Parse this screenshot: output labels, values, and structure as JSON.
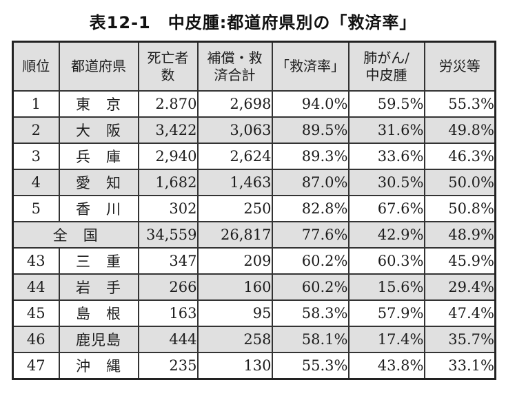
{
  "title": "表12-1　中皮腫:都道府県別の「救済率」",
  "colors": {
    "stripe_bg": "#e0e0e0",
    "border_inner": "#333333",
    "border_outer": "#222222",
    "text": "#1c1c1c",
    "page_bg": "#ffffff"
  },
  "chart_data": {
    "type": "table",
    "title": "表12-1　中皮腫:都道府県別の「救済率」",
    "columns": [
      "順位",
      "都道府県",
      "死亡者数",
      "補償・救済合計",
      "「救済率」",
      "肺がん/中皮腫",
      "労災等"
    ],
    "rows": [
      [
        "1",
        "東京",
        "2.870",
        "2,698",
        "94.0%",
        "59.5%",
        "55.3%"
      ],
      [
        "2",
        "大阪",
        "3,422",
        "3,063",
        "89.5%",
        "31.6%",
        "49.8%"
      ],
      [
        "3",
        "兵庫",
        "2,940",
        "2,624",
        "89.3%",
        "33.6%",
        "46.3%"
      ],
      [
        "4",
        "愛知",
        "1,682",
        "1,463",
        "87.0%",
        "30.5%",
        "50.0%"
      ],
      [
        "5",
        "香川",
        "302",
        "250",
        "82.8%",
        "67.6%",
        "50.8%"
      ],
      [
        "",
        "全国",
        "34,559",
        "26,817",
        "77.6%",
        "42.9%",
        "48.9%"
      ],
      [
        "43",
        "三重",
        "347",
        "209",
        "60.2%",
        "60.3%",
        "45.9%"
      ],
      [
        "44",
        "岩手",
        "266",
        "160",
        "60.2%",
        "15.6%",
        "29.4%"
      ],
      [
        "45",
        "島根",
        "163",
        "95",
        "58.3%",
        "57.9%",
        "47.4%"
      ],
      [
        "46",
        "鹿児島",
        "444",
        "258",
        "58.1%",
        "17.4%",
        "35.7%"
      ],
      [
        "47",
        "沖縄",
        "235",
        "130",
        "55.3%",
        "43.8%",
        "33.1%"
      ]
    ]
  },
  "table": {
    "columns": [
      {
        "label": "順位"
      },
      {
        "label": "都道府県"
      },
      {
        "label": "死亡者\n数"
      },
      {
        "label": "補償・救\n済合計"
      },
      {
        "label": "「救済率」"
      },
      {
        "label": "肺がん/\n中皮腫"
      },
      {
        "label": "労災等"
      }
    ],
    "rows": [
      {
        "rank": "1",
        "pref": "東　京",
        "deaths": "2.870",
        "relief": "2,698",
        "rate": "94.0%",
        "lung": "59.5%",
        "rosai": "55.3%"
      },
      {
        "rank": "2",
        "pref": "大　阪",
        "deaths": "3,422",
        "relief": "3,063",
        "rate": "89.5%",
        "lung": "31.6%",
        "rosai": "49.8%"
      },
      {
        "rank": "3",
        "pref": "兵　庫",
        "deaths": "2,940",
        "relief": "2,624",
        "rate": "89.3%",
        "lung": "33.6%",
        "rosai": "46.3%"
      },
      {
        "rank": "4",
        "pref": "愛　知",
        "deaths": "1,682",
        "relief": "1,463",
        "rate": "87.0%",
        "lung": "30.5%",
        "rosai": "50.0%"
      },
      {
        "rank": "5",
        "pref": "香　川",
        "deaths": "302",
        "relief": "250",
        "rate": "82.8%",
        "lung": "67.6%",
        "rosai": "50.8%"
      },
      {
        "rank": null,
        "pref": "全　国",
        "deaths": "34,559",
        "relief": "26,817",
        "rate": "77.6%",
        "lung": "42.9%",
        "rosai": "48.9%"
      },
      {
        "rank": "43",
        "pref": "三　重",
        "deaths": "347",
        "relief": "209",
        "rate": "60.2%",
        "lung": "60.3%",
        "rosai": "45.9%"
      },
      {
        "rank": "44",
        "pref": "岩　手",
        "deaths": "266",
        "relief": "160",
        "rate": "60.2%",
        "lung": "15.6%",
        "rosai": "29.4%"
      },
      {
        "rank": "45",
        "pref": "島　根",
        "deaths": "163",
        "relief": "95",
        "rate": "58.3%",
        "lung": "57.9%",
        "rosai": "47.4%"
      },
      {
        "rank": "46",
        "pref": "鹿児島",
        "deaths": "444",
        "relief": "258",
        "rate": "58.1%",
        "lung": "17.4%",
        "rosai": "35.7%"
      },
      {
        "rank": "47",
        "pref": "沖　縄",
        "deaths": "235",
        "relief": "130",
        "rate": "55.3%",
        "lung": "43.8%",
        "rosai": "33.1%"
      }
    ]
  }
}
